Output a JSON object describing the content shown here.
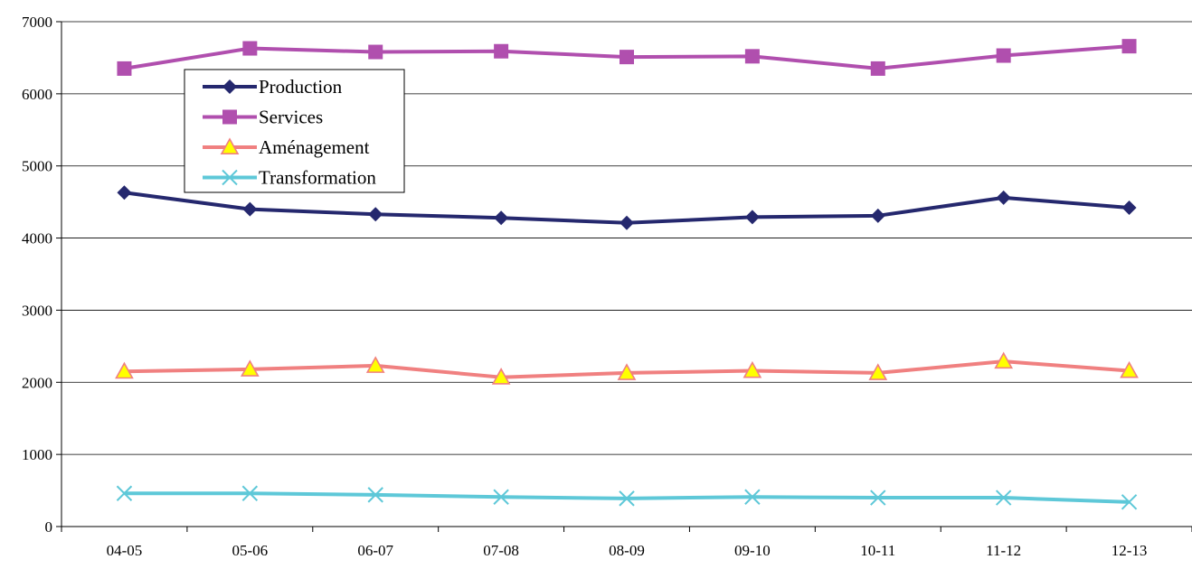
{
  "chart_data": {
    "type": "line",
    "title": "",
    "xlabel": "",
    "ylabel": "",
    "categories": [
      "04-05",
      "05-06",
      "06-07",
      "07-08",
      "08-09",
      "09-10",
      "10-11",
      "11-12",
      "12-13"
    ],
    "ylim": [
      0,
      7000
    ],
    "yticks": [
      0,
      1000,
      2000,
      3000,
      4000,
      5000,
      6000,
      7000
    ],
    "grid": "horizontal",
    "legend_position": "top-left",
    "series": [
      {
        "name": "Production",
        "color": "#25286e",
        "marker": "diamond",
        "values": [
          4630,
          4400,
          4330,
          4280,
          4210,
          4290,
          4310,
          4560,
          4420
        ]
      },
      {
        "name": "Services",
        "color": "#b04fae",
        "marker": "square",
        "values": [
          6350,
          6630,
          6580,
          6590,
          6510,
          6520,
          6350,
          6530,
          6660
        ]
      },
      {
        "name": "Aménagement",
        "color": "#f08080",
        "marker": "triangle",
        "marker_fill": "#ffff00",
        "values": [
          2150,
          2180,
          2230,
          2070,
          2130,
          2160,
          2130,
          2290,
          2160
        ]
      },
      {
        "name": "Transformation",
        "color": "#5ec8d8",
        "marker": "x",
        "values": [
          460,
          460,
          440,
          410,
          390,
          410,
          400,
          400,
          340
        ]
      }
    ]
  }
}
